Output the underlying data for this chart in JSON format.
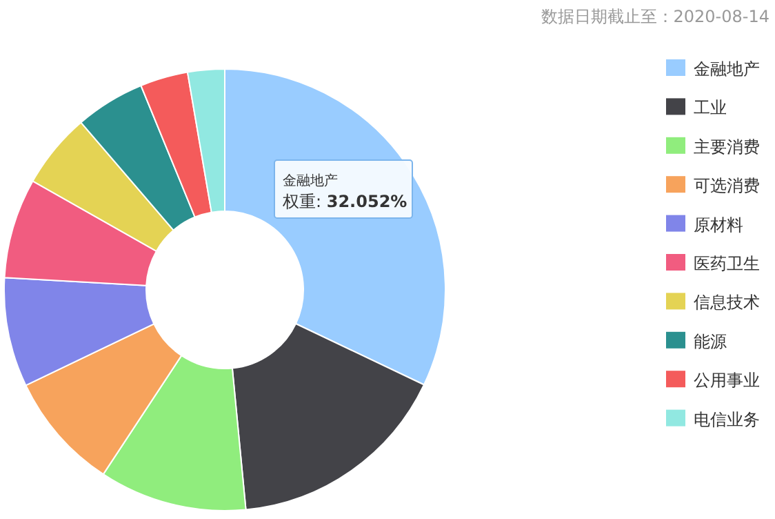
{
  "chart_data": {
    "type": "donut",
    "title": "数据日期截止至：2020-08-14",
    "categories": [
      "金融地产",
      "工业",
      "主要消费",
      "可选消费",
      "原材料",
      "医药卫生",
      "信息技术",
      "能源",
      "公用事业",
      "电信业务"
    ],
    "values": [
      32.052,
      16.4,
      10.8,
      8.6,
      8.0,
      7.3,
      5.5,
      5.1,
      3.5,
      2.7
    ],
    "colors": [
      "#99ccff",
      "#434348",
      "#90ed7d",
      "#f7a35c",
      "#8085e9",
      "#f15c80",
      "#e4d354",
      "#2b908f",
      "#f45b5b",
      "#91e8e1"
    ],
    "legend": "right",
    "annotations": [
      "金融地产",
      "权重: **32.052%**"
    ]
  }
}
